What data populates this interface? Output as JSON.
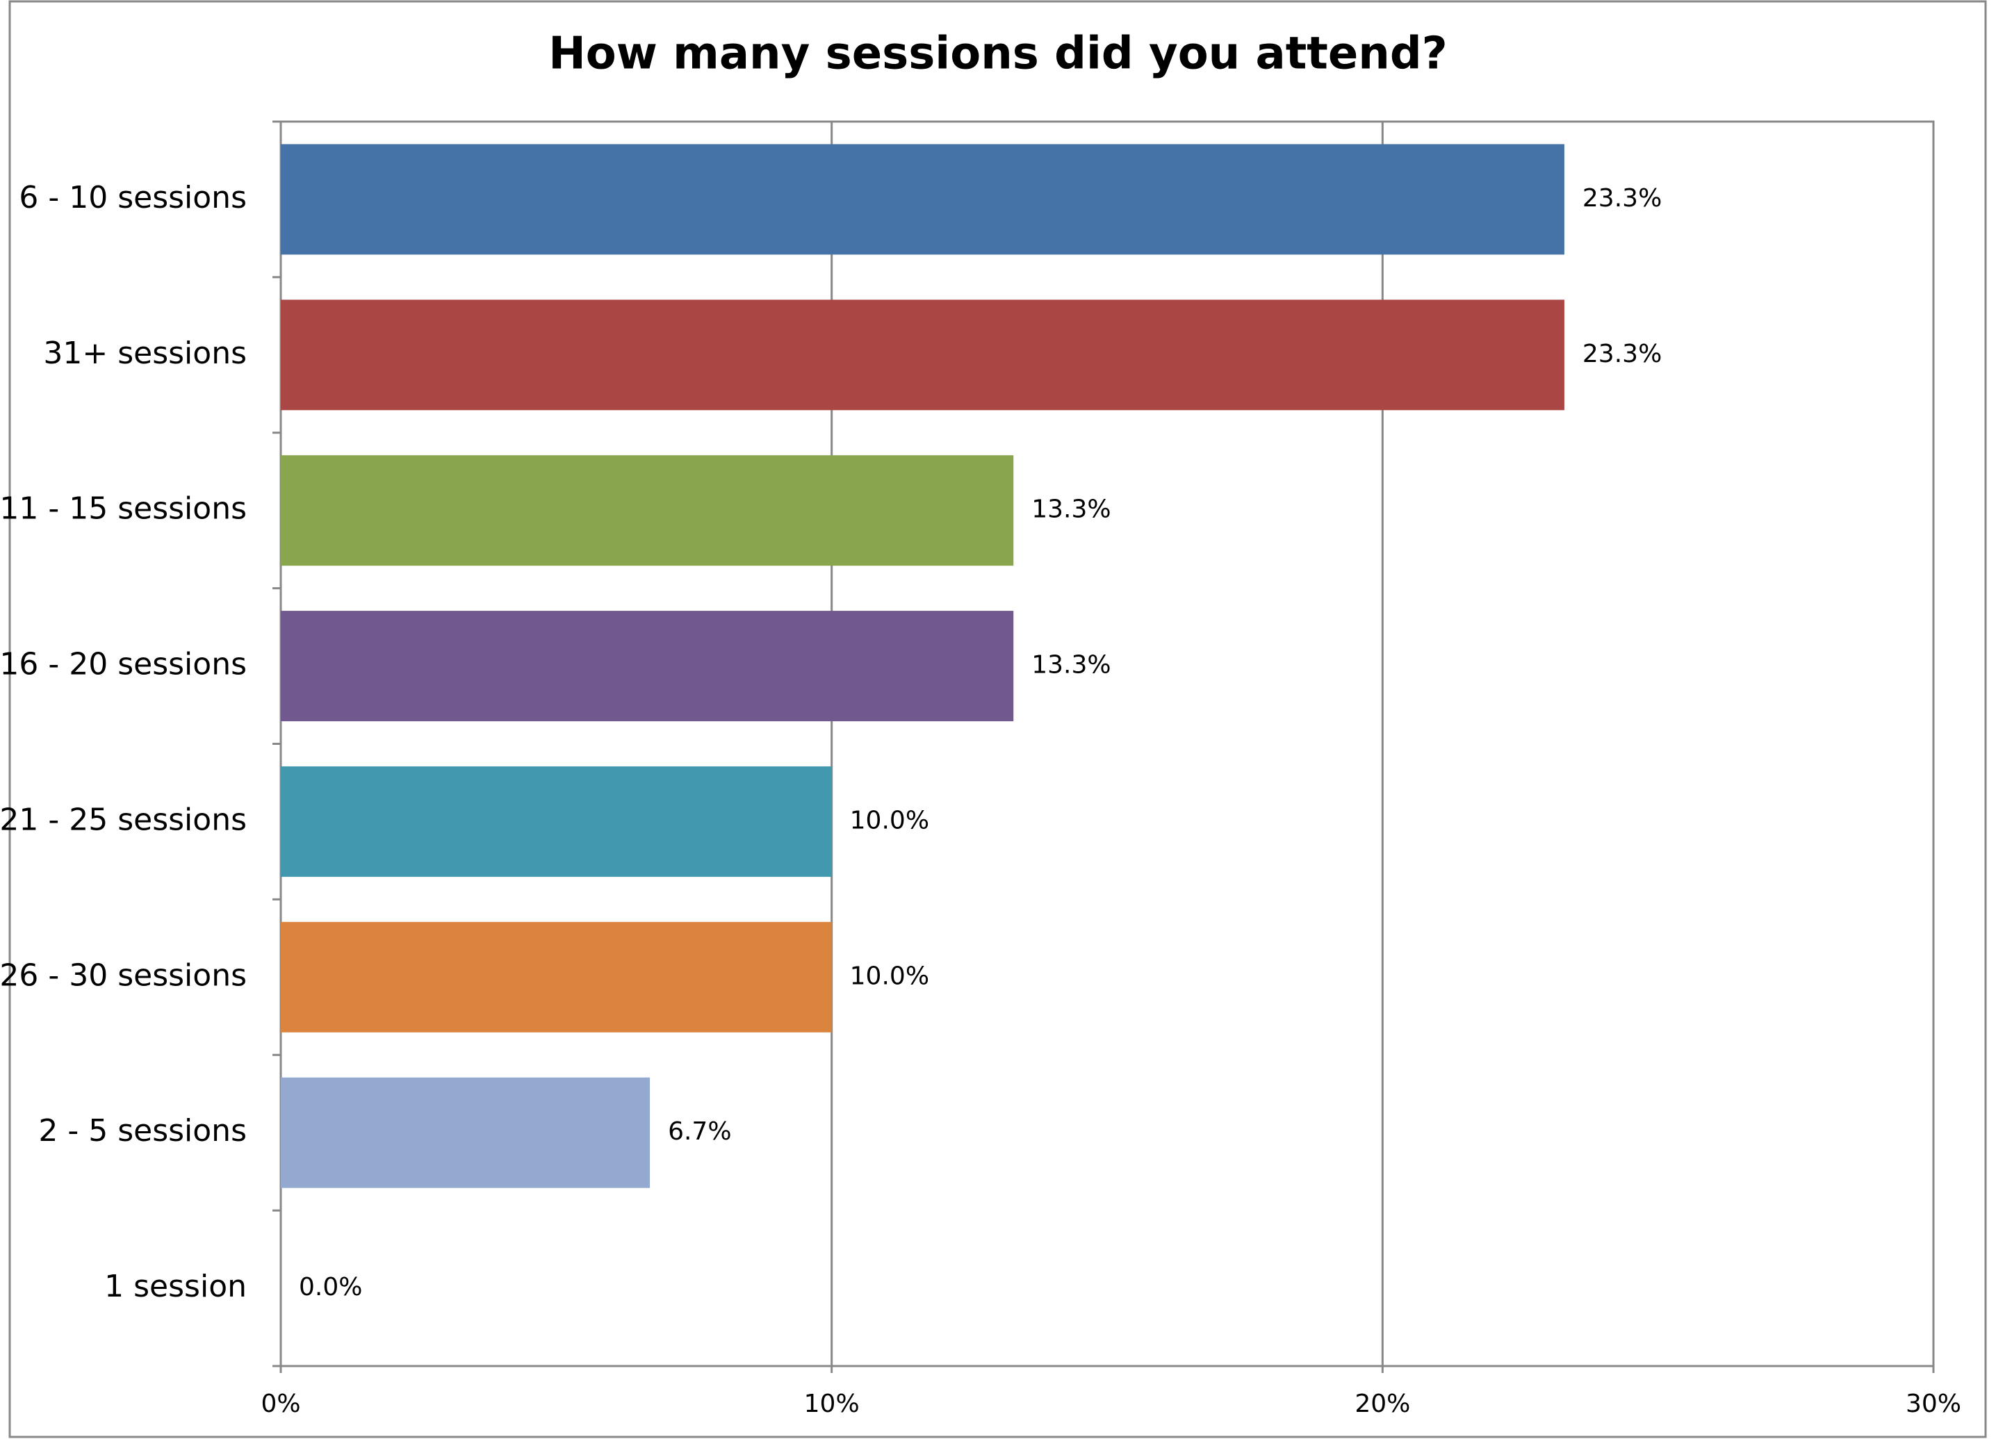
{
  "chart_data": {
    "type": "bar",
    "orientation": "horizontal",
    "title": "How many sessions did you attend?",
    "categories": [
      "6 - 10 sessions",
      "31+ sessions",
      "11 - 15 sessions",
      "16 - 20 sessions",
      "21 - 25 sessions",
      "26 - 30 sessions",
      "2 - 5 sessions",
      "1 session"
    ],
    "values": [
      23.3,
      23.3,
      13.3,
      13.3,
      10.0,
      10.0,
      6.7,
      0.0
    ],
    "value_labels": [
      "23.3%",
      "23.3%",
      "13.3%",
      "13.3%",
      "10.0%",
      "10.0%",
      "6.7%",
      "0.0%"
    ],
    "colors": [
      "#4572a7",
      "#aa4643",
      "#89a54e",
      "#71588f",
      "#4198af",
      "#db843d",
      "#93a9cf",
      "#d19392"
    ],
    "xlim": [
      0,
      30
    ],
    "xticks": [
      {
        "value": 0,
        "label": "0%"
      },
      {
        "value": 10,
        "label": "10%"
      },
      {
        "value": 20,
        "label": "20%"
      },
      {
        "value": 30,
        "label": "30%"
      }
    ],
    "grid": true
  }
}
